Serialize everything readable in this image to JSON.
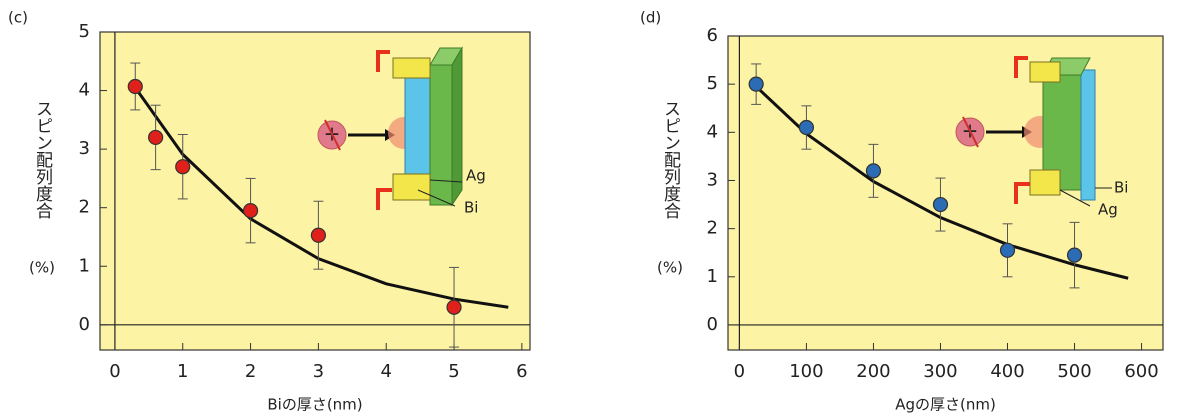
{
  "chart_data": [
    {
      "type": "scatter",
      "panel_label": "(c)",
      "xlabel": "Biの厚さ(nm)",
      "ylabel": "スピン配列度合",
      "ylabel_unit": "(%)",
      "xlim": [
        -0.22,
        6.12
      ],
      "ylim": [
        -0.43,
        5
      ],
      "xticks": [
        0,
        1,
        2,
        3,
        4,
        5,
        6
      ],
      "yticks": [
        0,
        1,
        2,
        3,
        4,
        5
      ],
      "series": [
        {
          "color": "#e0201b",
          "x": [
            0.3,
            0.6,
            1,
            2,
            3,
            5
          ],
          "values": [
            4.07,
            3.2,
            2.7,
            1.95,
            1.53,
            0.3
          ],
          "errors": [
            0.4,
            0.55,
            0.55,
            0.55,
            0.58,
            0.68
          ]
        }
      ],
      "fit": {
        "x": [
          0.3,
          1,
          2,
          3,
          4,
          5,
          5.8
        ],
        "values": [
          4.05,
          2.91,
          1.81,
          1.13,
          0.7,
          0.44,
          0.3
        ]
      },
      "annotations": [
        "Ag",
        "Bi"
      ]
    },
    {
      "type": "scatter",
      "panel_label": "(d)",
      "xlabel": "Agの厚さ(nm)",
      "ylabel": "スピン配列度合",
      "ylabel_unit": "(%)",
      "xlim": [
        -17,
        632
      ],
      "ylim": [
        -0.52,
        6
      ],
      "xticks": [
        0,
        100,
        200,
        300,
        400,
        500,
        600
      ],
      "yticks": [
        0,
        1,
        2,
        3,
        4,
        5,
        6
      ],
      "series": [
        {
          "color": "#2b6cb5",
          "x": [
            25,
            100,
            200,
            300,
            400,
            500
          ],
          "values": [
            5.0,
            4.1,
            3.2,
            2.5,
            1.55,
            1.45
          ],
          "errors": [
            0.42,
            0.45,
            0.55,
            0.55,
            0.55,
            0.68
          ]
        }
      ],
      "fit": {
        "x": [
          25,
          100,
          200,
          300,
          400,
          500,
          580
        ],
        "values": [
          4.95,
          3.97,
          2.98,
          2.23,
          1.67,
          1.25,
          0.97
        ]
      },
      "annotations": [
        "Bi",
        "Ag"
      ]
    }
  ]
}
